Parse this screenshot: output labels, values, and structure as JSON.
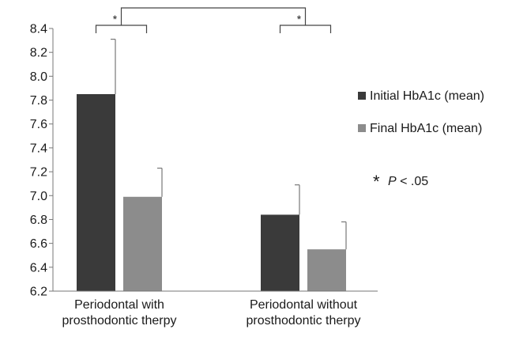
{
  "chart_data": {
    "type": "bar",
    "categories": [
      [
        "Periodontal with",
        "prosthodontic therpy"
      ],
      [
        "Periodontal without",
        "prosthodontic therpy"
      ]
    ],
    "series": [
      {
        "name": "Initial HbA1c (mean)",
        "color": "#3a3a3a",
        "values": [
          7.85,
          6.84
        ],
        "error": [
          0.46,
          0.25
        ]
      },
      {
        "name": "Final HbA1c (mean)",
        "color": "#8c8c8c",
        "values": [
          6.99,
          6.55
        ],
        "error": [
          0.24,
          0.23
        ]
      }
    ],
    "ylim": [
      6.2,
      8.4
    ],
    "yticks": [
      "6.2",
      "6.4",
      "6.6",
      "6.8",
      "7.0",
      "7.2",
      "7.4",
      "7.6",
      "7.8",
      "8.0",
      "8.2",
      "8.4"
    ],
    "legend_position": "right",
    "grid": false,
    "significance_marker": "*",
    "footnote": {
      "star": "*",
      "p": "P",
      "rest": " < .05"
    }
  }
}
